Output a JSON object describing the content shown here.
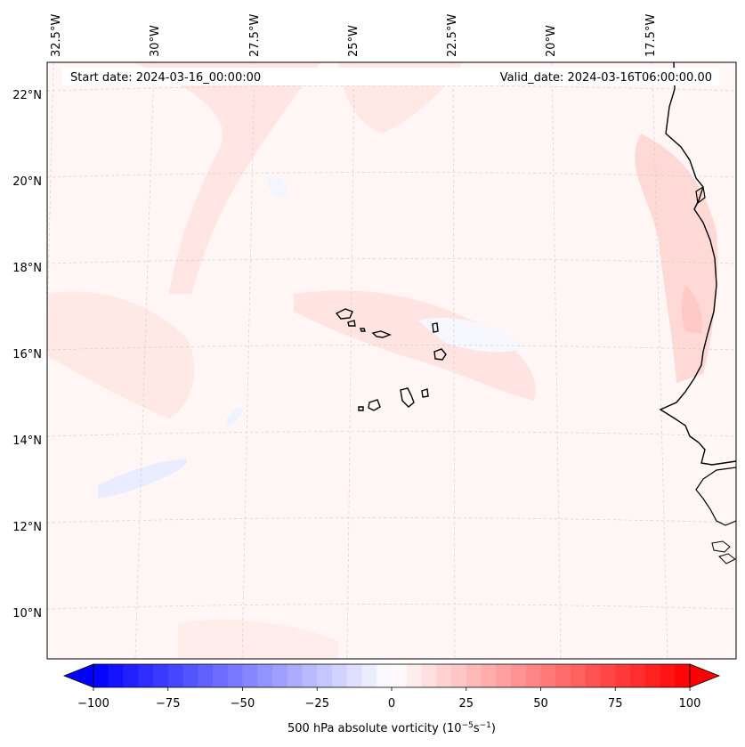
{
  "map": {
    "header": {
      "start_date": "Start date: 2024-03-16_00:00:00",
      "valid_date": "Valid_date: 2024-03-16T06:00:00.00"
    },
    "longitude_labels": [
      "32.5°W",
      "30°W",
      "27.5°W",
      "25°W",
      "22.5°W",
      "20°W",
      "17.5°W"
    ],
    "latitude_labels": [
      "22°N",
      "20°N",
      "18°N",
      "16°N",
      "14°N",
      "12°N",
      "10°N"
    ],
    "colorbar": {
      "ticks": [
        "−100",
        "−75",
        "−50",
        "−25",
        "0",
        "25",
        "50",
        "75",
        "100"
      ],
      "label": "500 hPa absolute vorticity (10",
      "label_sup1": "−5",
      "label_mid": "s",
      "label_sup2": "−1",
      "label_end": ")",
      "range": [
        -100,
        100
      ],
      "levels": 41
    },
    "colors": {
      "negative_max": "#0000ff",
      "zero": "#ffffff",
      "positive_max": "#ff0000",
      "coastline": "#000000",
      "gridline": "#c8c8c8"
    }
  }
}
